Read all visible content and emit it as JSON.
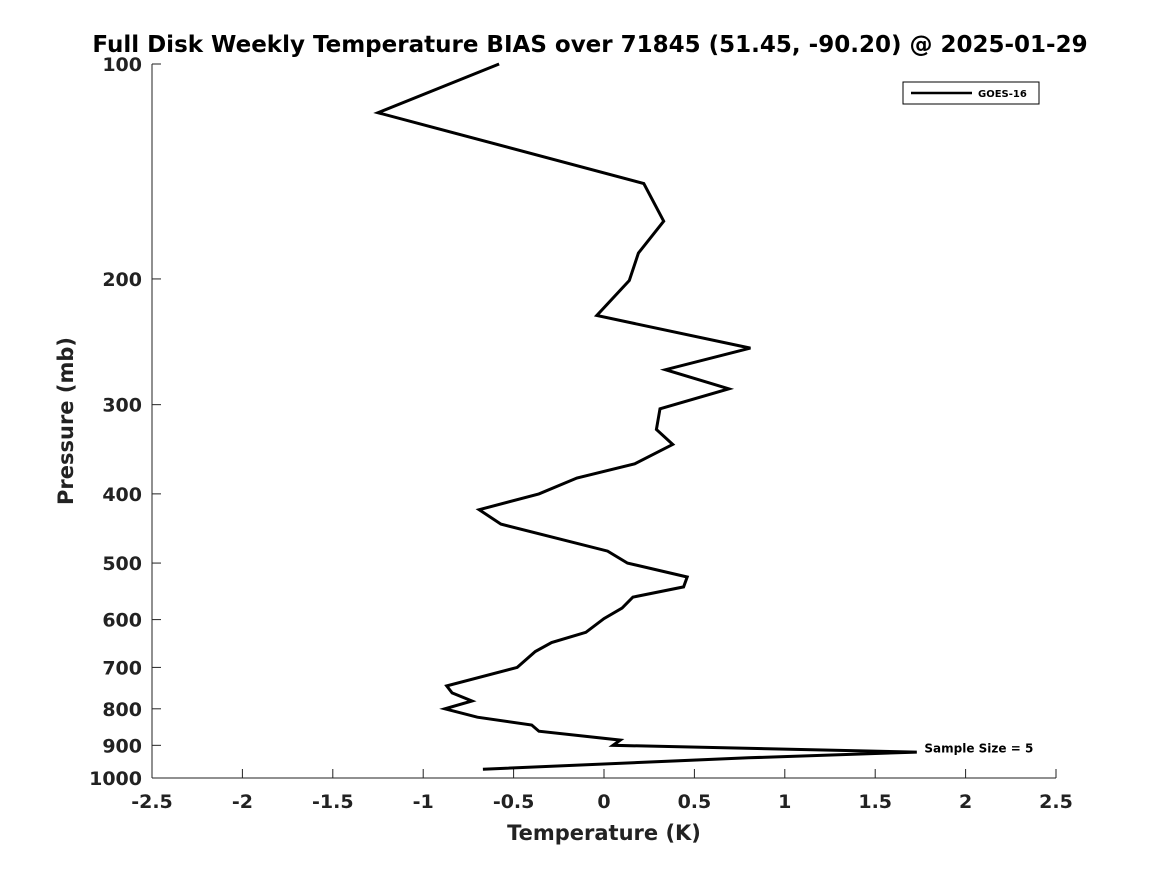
{
  "chart_data": {
    "type": "line",
    "title": "Full Disk Weekly Temperature BIAS over 71845 (51.45, -90.20) @ 2025-01-29",
    "xlabel": "Temperature (K)",
    "ylabel": "Pressure (mb)",
    "xlim": [
      -2.5,
      2.5
    ],
    "ylim": [
      1000,
      100
    ],
    "yscale": "log",
    "x_ticks": [
      "-2.5",
      "-2",
      "-1.5",
      "-1",
      "-0.5",
      "0",
      "0.5",
      "1",
      "1.5",
      "2",
      "2.5"
    ],
    "y_ticks": [
      "100",
      "200",
      "300",
      "400",
      "500",
      "600",
      "700",
      "800",
      "900",
      "1000"
    ],
    "grid": false,
    "legend_position": "top-right",
    "series": [
      {
        "name": "GOES-16",
        "color": "#000000",
        "points": [
          {
            "x": -0.58,
            "p": 100
          },
          {
            "x": -1.25,
            "p": 117
          },
          {
            "x": 0.22,
            "p": 147
          },
          {
            "x": 0.33,
            "p": 166
          },
          {
            "x": 0.19,
            "p": 184
          },
          {
            "x": 0.14,
            "p": 201
          },
          {
            "x": -0.04,
            "p": 225
          },
          {
            "x": 0.81,
            "p": 250
          },
          {
            "x": 0.34,
            "p": 268
          },
          {
            "x": 0.69,
            "p": 285
          },
          {
            "x": 0.31,
            "p": 304
          },
          {
            "x": 0.29,
            "p": 325
          },
          {
            "x": 0.38,
            "p": 341
          },
          {
            "x": 0.17,
            "p": 363
          },
          {
            "x": -0.15,
            "p": 380
          },
          {
            "x": -0.36,
            "p": 400
          },
          {
            "x": -0.69,
            "p": 421
          },
          {
            "x": -0.57,
            "p": 441
          },
          {
            "x": 0.02,
            "p": 481
          },
          {
            "x": 0.13,
            "p": 500
          },
          {
            "x": 0.46,
            "p": 523
          },
          {
            "x": 0.44,
            "p": 540
          },
          {
            "x": 0.16,
            "p": 558
          },
          {
            "x": 0.1,
            "p": 578
          },
          {
            "x": 0.0,
            "p": 598
          },
          {
            "x": -0.1,
            "p": 625
          },
          {
            "x": -0.29,
            "p": 646
          },
          {
            "x": -0.38,
            "p": 665
          },
          {
            "x": -0.48,
            "p": 700
          },
          {
            "x": -0.87,
            "p": 743
          },
          {
            "x": -0.84,
            "p": 760
          },
          {
            "x": -0.73,
            "p": 780
          },
          {
            "x": -0.88,
            "p": 800
          },
          {
            "x": -0.7,
            "p": 822
          },
          {
            "x": -0.4,
            "p": 843
          },
          {
            "x": -0.36,
            "p": 860
          },
          {
            "x": 0.09,
            "p": 885
          },
          {
            "x": 0.05,
            "p": 900
          },
          {
            "x": 1.73,
            "p": 920
          },
          {
            "x": 0.8,
            "p": 937
          },
          {
            "x": -0.67,
            "p": 972
          }
        ]
      }
    ],
    "annotation": {
      "text": "Sample Size = 5",
      "x": 1.75,
      "p": 918
    }
  }
}
